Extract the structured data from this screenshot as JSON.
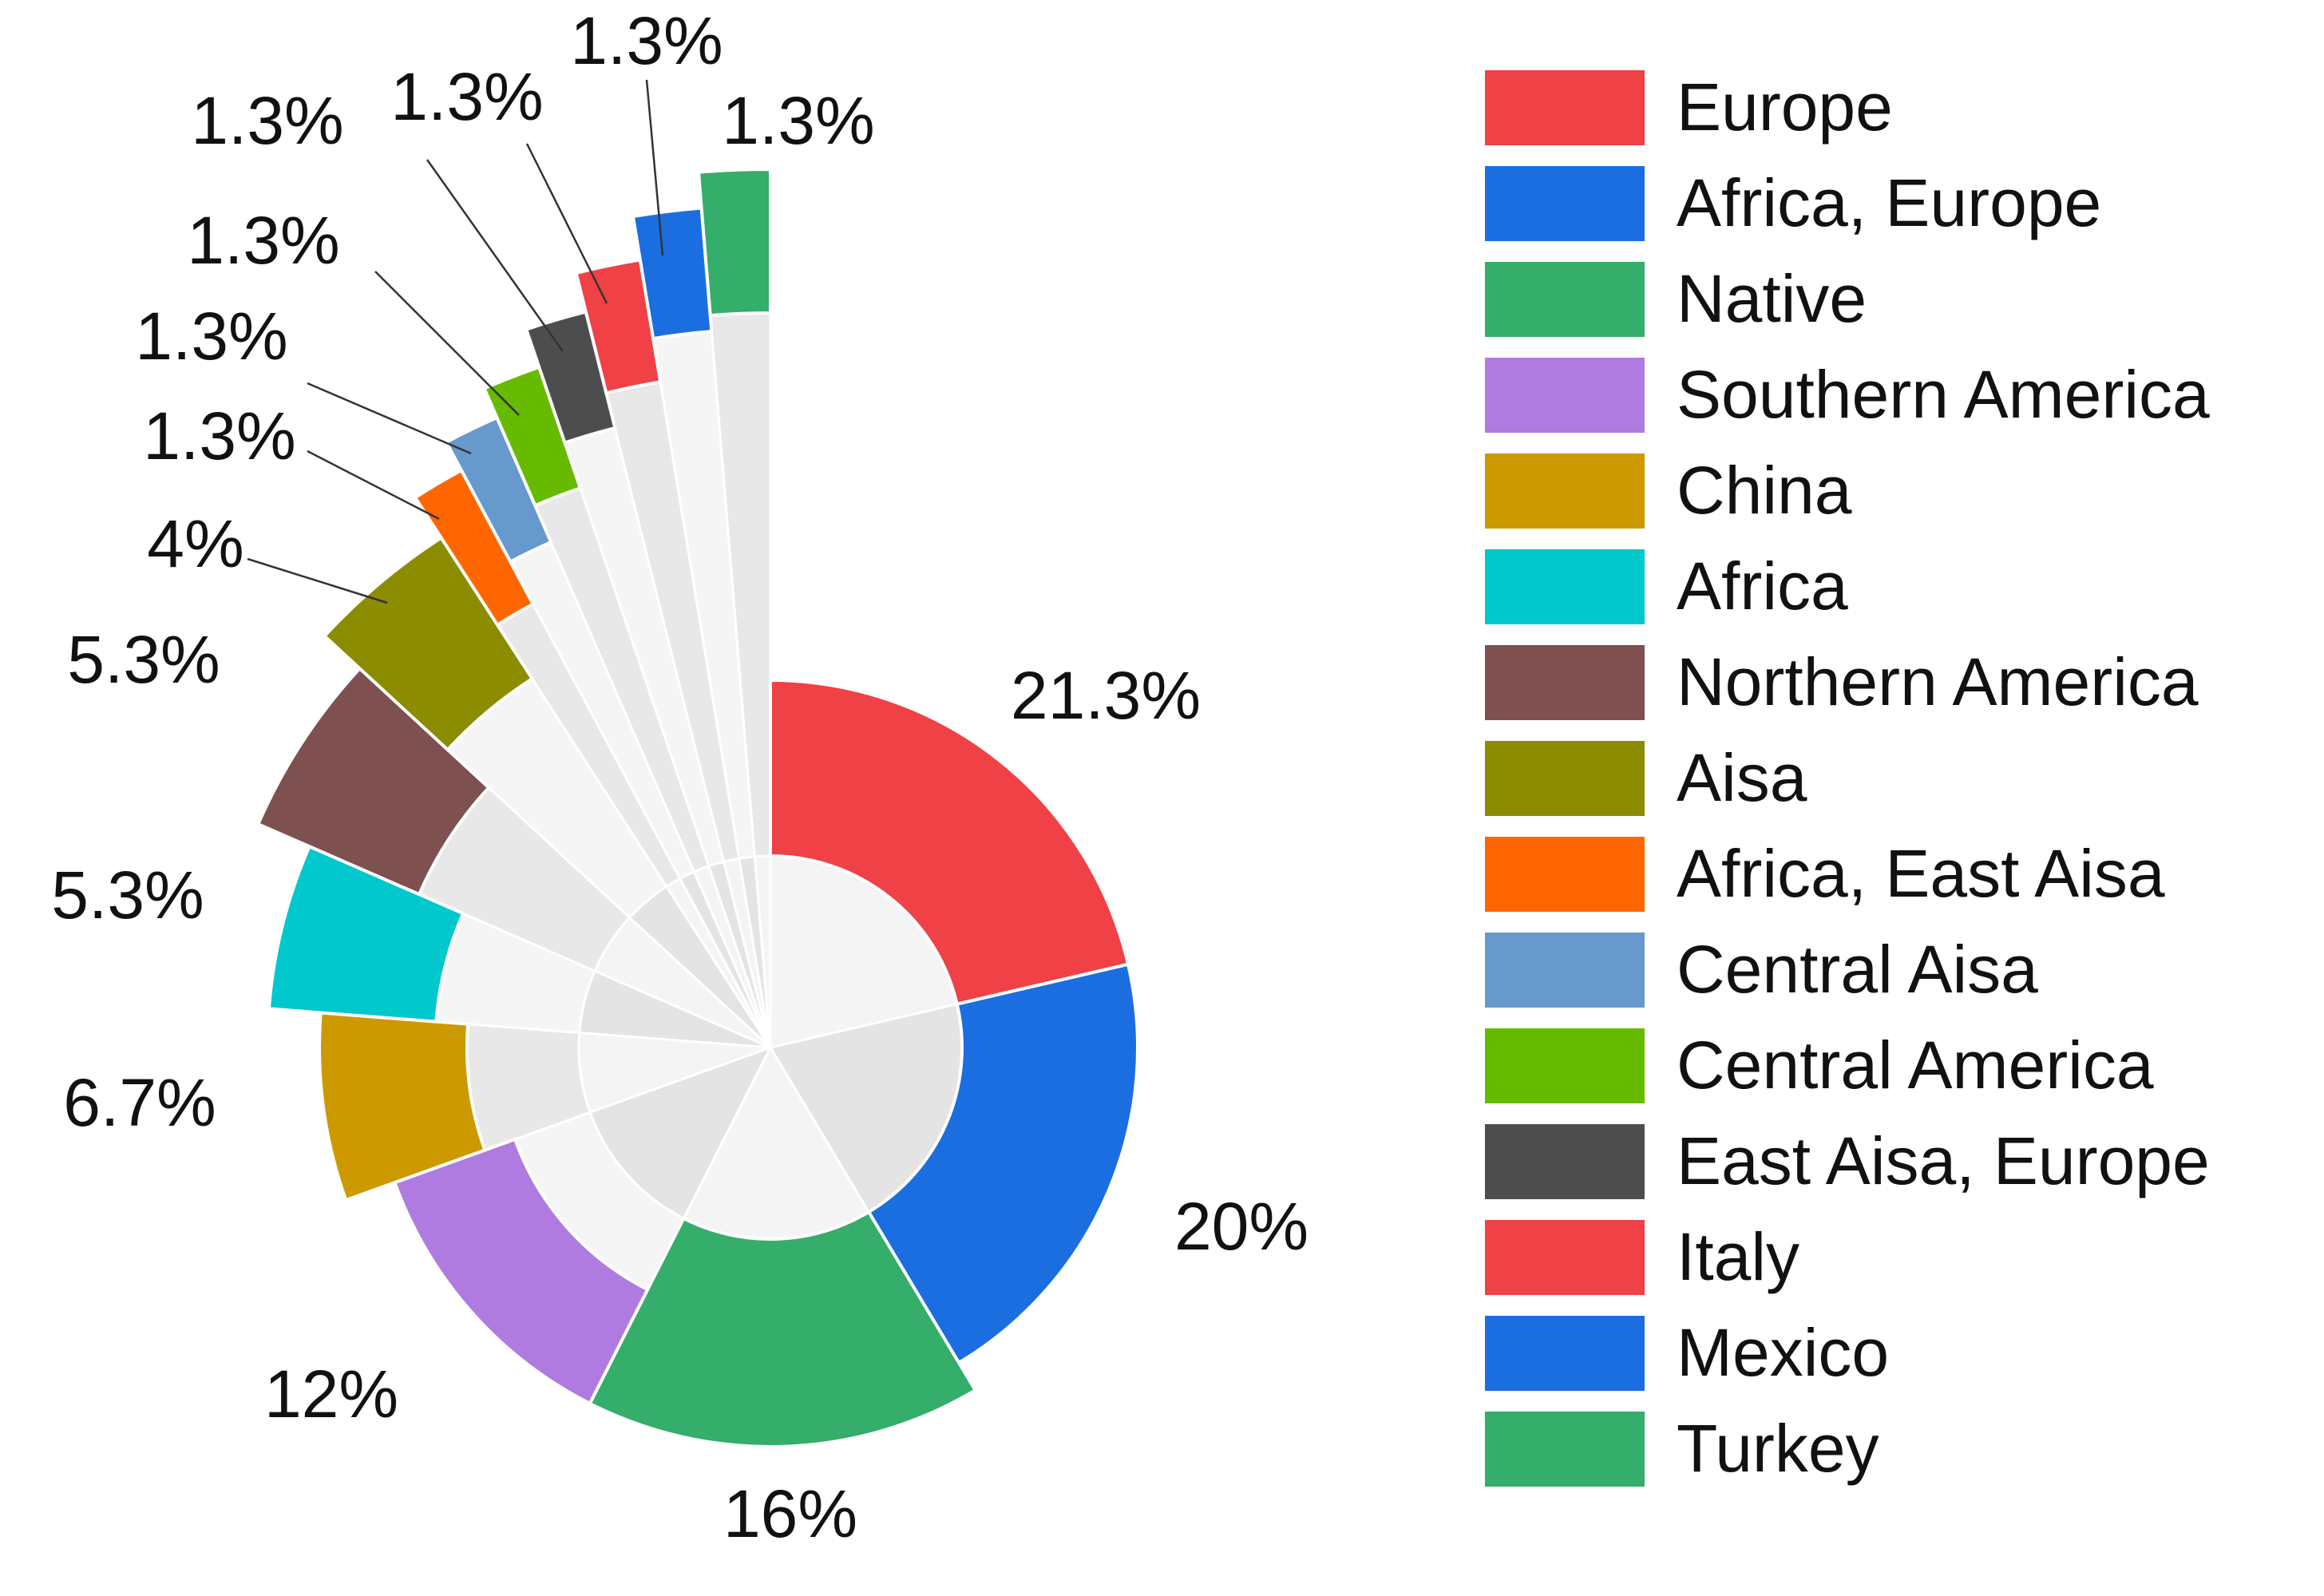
{
  "chart_data": {
    "type": "pie",
    "variant": "nightingale-rose",
    "title": "",
    "series": [
      {
        "name": "Europe",
        "value": 21.3,
        "label": "21.3%",
        "color": "#ef4146"
      },
      {
        "name": "Africa, Europe",
        "value": 20,
        "label": "20%",
        "color": "#1a6ee0"
      },
      {
        "name": "Native",
        "value": 16,
        "label": "16%",
        "color": "#35ad6b"
      },
      {
        "name": "Southern America",
        "value": 12,
        "label": "12%",
        "color": "#b07be0"
      },
      {
        "name": "China",
        "value": 6.7,
        "label": "6.7%",
        "color": "#cc9a00"
      },
      {
        "name": "Africa",
        "value": 5.3,
        "label": "5.3%",
        "color": "#00c8cc"
      },
      {
        "name": "Northern America",
        "value": 5.3,
        "label": "5.3%",
        "color": "#7e5050"
      },
      {
        "name": "Aisa",
        "value": 4,
        "label": "4%",
        "color": "#8c8c00"
      },
      {
        "name": "Africa, East Aisa",
        "value": 1.3,
        "label": "1.3%",
        "color": "#ff6600"
      },
      {
        "name": "Central Aisa",
        "value": 1.3,
        "label": "1.3%",
        "color": "#6699cc"
      },
      {
        "name": "Central America",
        "value": 1.3,
        "label": "1.3%",
        "color": "#66bb00"
      },
      {
        "name": "East Aisa, Europe",
        "value": 1.3,
        "label": "1.3%",
        "color": "#4d4d4d"
      },
      {
        "name": "Italy",
        "value": 1.3,
        "label": "1.3%",
        "color": "#ef4146"
      },
      {
        "name": "Mexico",
        "value": 1.3,
        "label": "1.3%",
        "color": "#1a6ee0"
      },
      {
        "name": "Turkey",
        "value": 1.3,
        "label": "1.3%",
        "color": "#35ad6b"
      }
    ],
    "legend": "right",
    "grid": false
  }
}
